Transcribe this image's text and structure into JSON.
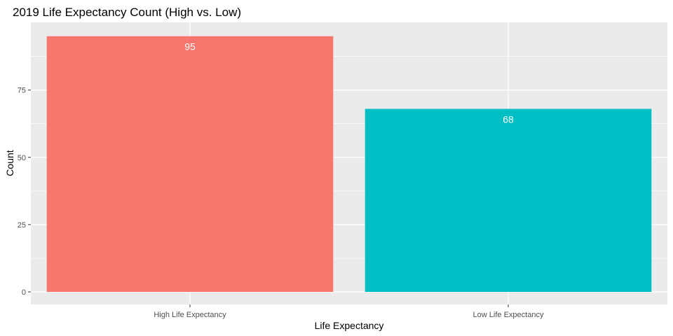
{
  "chart_data": {
    "type": "bar",
    "title": "2019 Life Expectancy Count (High vs. Low)",
    "xlabel": "Life Expectancy",
    "ylabel": "Count",
    "categories": [
      "High Life Expectancy",
      "Low Life Expectancy"
    ],
    "values": [
      95,
      68
    ],
    "data_labels": [
      "95",
      "68"
    ],
    "colors": [
      "#F8766D",
      "#00BFC4"
    ],
    "ylim": [
      0,
      100
    ],
    "yticks": [
      0,
      25,
      50,
      75
    ],
    "ytick_labels": [
      "0",
      "25",
      "50",
      "75"
    ],
    "grid": true,
    "legend": "none",
    "panel_background": "#EBEBEB",
    "grid_color": "#FFFFFF"
  }
}
